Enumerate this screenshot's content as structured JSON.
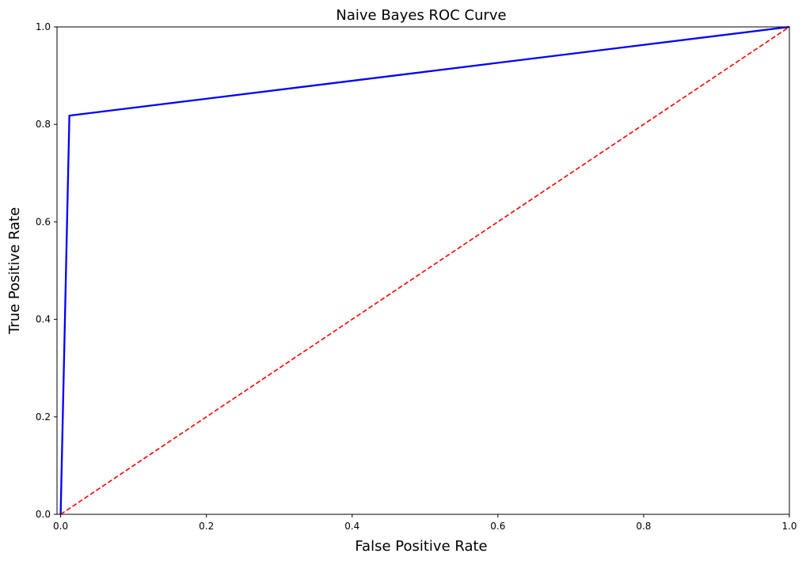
{
  "chart_data": {
    "type": "line",
    "title": "Naive Bayes ROC Curve",
    "xlabel": "False Positive Rate",
    "ylabel": "True Positive Rate",
    "xlim": [
      -0.005,
      1.0
    ],
    "ylim": [
      0.0,
      1.0
    ],
    "grid": false,
    "x_ticks": [
      "0.0",
      "0.2",
      "0.4",
      "0.6",
      "0.8",
      "1.0"
    ],
    "y_ticks": [
      "0.0",
      "0.2",
      "0.4",
      "0.6",
      "0.8",
      "1.0"
    ],
    "series": [
      {
        "x": [
          0.0,
          0.012,
          1.0
        ],
        "y": [
          0.0,
          0.818,
          1.0
        ],
        "color": "#0000ff",
        "style": "solid"
      },
      {
        "x": [
          0.0,
          1.0
        ],
        "y": [
          0.0,
          1.0
        ],
        "color": "#ff0000",
        "style": "dashed"
      }
    ]
  }
}
